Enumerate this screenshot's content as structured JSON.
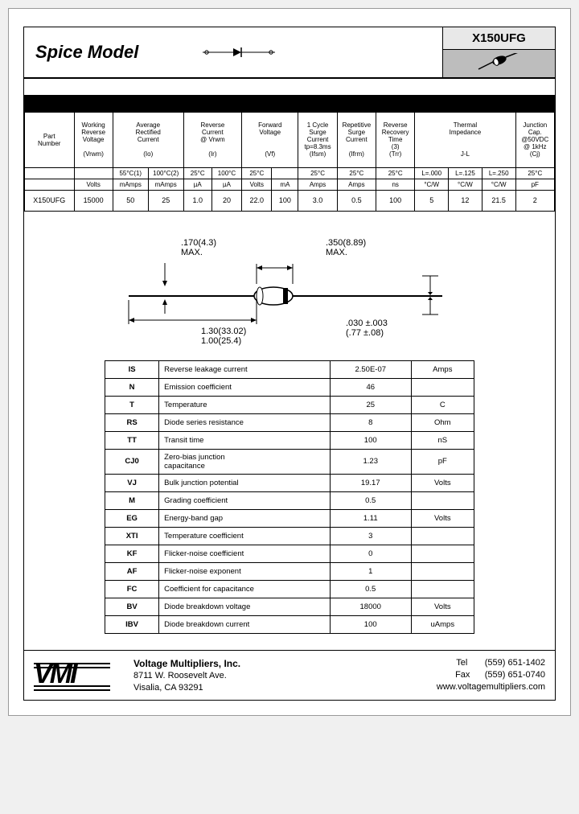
{
  "header": {
    "title": "Spice Model",
    "part_number": "X150UFG"
  },
  "spec_table": {
    "group_headers": [
      {
        "label": "Part\nNumber",
        "span": 1
      },
      {
        "label": "Working\nReverse\nVoltage\n\n(Vrwm)",
        "span": 1
      },
      {
        "label": "Average\nRectified\nCurrent\n\n(Io)",
        "span": 2
      },
      {
        "label": "Reverse\nCurrent\n@ Vrwm\n\n(Ir)",
        "span": 2
      },
      {
        "label": "Forward\nVoltage\n\n\n(Vf)",
        "span": 2
      },
      {
        "label": "1 Cycle\nSurge\nCurrent\ntp=8.3ms\n(Ifsm)",
        "span": 1
      },
      {
        "label": "Repetitive\nSurge\nCurrent\n\n(Ifrm)",
        "span": 1
      },
      {
        "label": "Reverse\nRecovery\nTime\n(3)\n(Trr)",
        "span": 1
      },
      {
        "label": "Thermal\nImpedance\n\n\nJ-L",
        "span": 3
      },
      {
        "label": "Junction\nCap.\n@50VDC\n@ 1kHz\n(Cj)",
        "span": 1
      }
    ],
    "cond_row": [
      "",
      "",
      "55°C(1)",
      "100°C(2)",
      "25°C",
      "100°C",
      "25°C",
      "",
      "25°C",
      "25°C",
      "25°C",
      "L=.000",
      "L=.125",
      "L=.250",
      "25°C"
    ],
    "unit_row": [
      "",
      "Volts",
      "mAmps",
      "mAmps",
      "µA",
      "µA",
      "Volts",
      "mA",
      "Amps",
      "Amps",
      "ns",
      "°C/W",
      "°C/W",
      "°C/W",
      "pF"
    ],
    "data_row": [
      "X150UFG",
      "15000",
      "50",
      "25",
      "1.0",
      "20",
      "22.0",
      "100",
      "3.0",
      "0.5",
      "100",
      "5",
      "12",
      "21.5",
      "2"
    ]
  },
  "dimensions": {
    "body_dia": ".170(4.3)\nMAX.",
    "body_len": ".350(8.89)\nMAX.",
    "lead_len": "1.30(33.02)\n1.00(25.4)",
    "lead_dia": ".030 ±.003\n(.77 ±.08)"
  },
  "spice": {
    "rows": [
      {
        "sym": "IS",
        "desc": "Reverse leakage current",
        "val": "2.50E-07",
        "unit": "Amps"
      },
      {
        "sym": "N",
        "desc": "Emission coefficient",
        "val": "46",
        "unit": ""
      },
      {
        "sym": "T",
        "desc": "Temperature",
        "val": "25",
        "unit": "C"
      },
      {
        "sym": "RS",
        "desc": "Diode series resistance",
        "val": "8",
        "unit": "Ohm"
      },
      {
        "sym": "TT",
        "desc": "Transit time",
        "val": "100",
        "unit": "nS"
      },
      {
        "sym": "CJ0",
        "desc": "Zero-bias junction\ncapacitance",
        "val": "1.23",
        "unit": "pF"
      },
      {
        "sym": "VJ",
        "desc": "Bulk junction potential",
        "val": "19.17",
        "unit": "Volts"
      },
      {
        "sym": "M",
        "desc": "Grading coefficient",
        "val": "0.5",
        "unit": ""
      },
      {
        "sym": "EG",
        "desc": "Energy-band gap",
        "val": "1.11",
        "unit": "Volts"
      },
      {
        "sym": "XTI",
        "desc": "Temperature coefficient",
        "val": "3",
        "unit": ""
      },
      {
        "sym": "KF",
        "desc": "Flicker-noise coefficient",
        "val": "0",
        "unit": ""
      },
      {
        "sym": "AF",
        "desc": "Flicker-noise exponent",
        "val": "1",
        "unit": ""
      },
      {
        "sym": "FC",
        "desc": "Coefficient for capacitance",
        "val": "0.5",
        "unit": ""
      },
      {
        "sym": "BV",
        "desc": "Diode breakdown voltage",
        "val": "18000",
        "unit": "Volts"
      },
      {
        "sym": "IBV",
        "desc": "Diode breakdown current",
        "val": "100",
        "unit": "uAmps"
      }
    ]
  },
  "footer": {
    "company": "Voltage Multipliers, Inc.",
    "addr1": "8711 W. Roosevelt Ave.",
    "addr2": "Visalia, CA  93291",
    "tel_label": "Tel",
    "tel": "(559) 651-1402",
    "fax_label": "Fax",
    "fax": "(559) 651-0740",
    "url": "www.voltagemultipliers.com"
  },
  "colors": {
    "gray_box": "#bdbdbd",
    "light_gray": "#e8e8e8"
  }
}
